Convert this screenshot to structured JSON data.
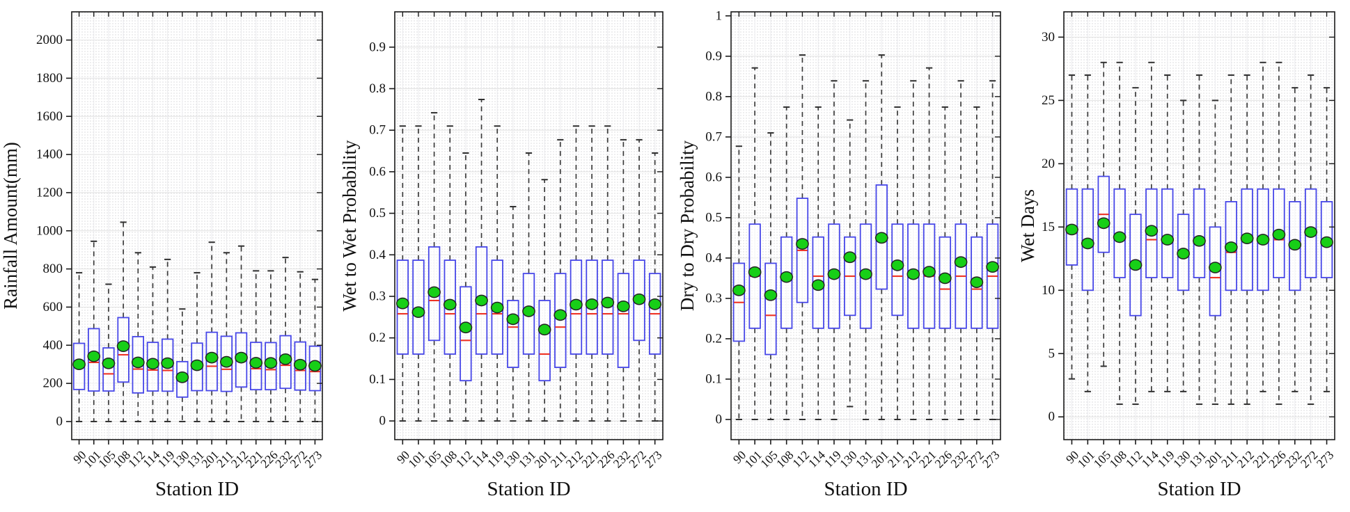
{
  "figure": {
    "type": "boxplot-grid",
    "panels": 4,
    "xlabel": "Station ID",
    "marker_legend": {
      "green_dot": "mean",
      "red_line": "median",
      "blue_box": "interquartile range",
      "dashed_line": "whisker"
    }
  },
  "colors": {
    "box_edge": "#4747e8",
    "box_fill": "#ffffff",
    "median": "#ee3224",
    "whisker": "#3c3c3c",
    "cap": "#2f2f2f",
    "mean_fill": "#17cf17",
    "mean_edge": "#222222",
    "axis": "#1a1a1a",
    "grid_major": "#e2e2e2",
    "grid_station": "#ebebee",
    "grid_minor_dot": "#c9c9ce",
    "text": "#111111"
  },
  "chart_data": [
    {
      "type": "box",
      "title": "",
      "xlabel": "Station ID",
      "ylabel": "Rainfall Amount(mm)",
      "ylim": [
        -95,
        2148
      ],
      "yticks": [
        0,
        200,
        400,
        600,
        800,
        1000,
        1200,
        1400,
        1600,
        1800,
        2000
      ],
      "grid": "dotted-minor",
      "legend_position": "none",
      "categories": [
        "90",
        "101",
        "105",
        "108",
        "112",
        "114",
        "119",
        "130",
        "131",
        "201",
        "211",
        "212",
        "221",
        "226",
        "232",
        "272",
        "273"
      ],
      "whisker_low": [
        0,
        0,
        0,
        0,
        0,
        0,
        0,
        0,
        0,
        0,
        0,
        0,
        0,
        0,
        0,
        0,
        0
      ],
      "q1": [
        168,
        160,
        160,
        207,
        150,
        160,
        159,
        128,
        162,
        162,
        158,
        181,
        167,
        167,
        174,
        165,
        162
      ],
      "median": [
        290,
        310,
        250,
        350,
        275,
        270,
        268,
        228,
        285,
        290,
        274,
        318,
        277,
        272,
        295,
        268,
        262
      ],
      "q3": [
        410,
        487,
        386,
        545,
        445,
        415,
        432,
        314,
        411,
        468,
        447,
        465,
        415,
        414,
        450,
        417,
        395
      ],
      "whisker_high": [
        780,
        945,
        720,
        1045,
        885,
        810,
        850,
        590,
        780,
        940,
        885,
        920,
        790,
        790,
        860,
        785,
        745
      ],
      "mean": [
        300,
        342,
        305,
        395,
        310,
        303,
        306,
        232,
        295,
        335,
        313,
        335,
        308,
        307,
        327,
        298,
        292
      ]
    },
    {
      "type": "box",
      "title": "",
      "xlabel": "Station ID",
      "ylabel": "Wet to Wet Probability",
      "ylim": [
        -0.045,
        0.985
      ],
      "yticks": [
        0,
        0.1,
        0.2,
        0.3,
        0.4,
        0.5,
        0.6,
        0.7,
        0.8,
        0.9
      ],
      "grid": "dotted-minor",
      "legend_position": "none",
      "categories": [
        "90",
        "101",
        "105",
        "108",
        "112",
        "114",
        "119",
        "130",
        "131",
        "201",
        "211",
        "212",
        "221",
        "226",
        "232",
        "272",
        "273"
      ],
      "whisker_low": [
        0,
        0,
        0,
        0,
        0,
        0,
        0,
        0,
        0,
        0,
        0,
        0,
        0,
        0,
        0,
        0,
        0
      ],
      "q1": [
        0.161,
        0.161,
        0.194,
        0.161,
        0.097,
        0.161,
        0.161,
        0.129,
        0.161,
        0.097,
        0.129,
        0.161,
        0.161,
        0.161,
        0.129,
        0.194,
        0.161
      ],
      "median": [
        0.258,
        0.258,
        0.29,
        0.258,
        0.194,
        0.258,
        0.258,
        0.226,
        0.258,
        0.161,
        0.226,
        0.258,
        0.258,
        0.258,
        0.258,
        0.29,
        0.258
      ],
      "q3": [
        0.387,
        0.387,
        0.419,
        0.387,
        0.323,
        0.419,
        0.387,
        0.29,
        0.355,
        0.29,
        0.355,
        0.387,
        0.387,
        0.387,
        0.355,
        0.387,
        0.355
      ],
      "whisker_high": [
        0.71,
        0.71,
        0.742,
        0.71,
        0.645,
        0.774,
        0.71,
        0.516,
        0.645,
        0.581,
        0.677,
        0.71,
        0.71,
        0.71,
        0.677,
        0.677,
        0.645
      ],
      "mean": [
        0.283,
        0.262,
        0.31,
        0.28,
        0.225,
        0.29,
        0.273,
        0.245,
        0.264,
        0.22,
        0.255,
        0.28,
        0.281,
        0.285,
        0.276,
        0.293,
        0.281
      ]
    },
    {
      "type": "box",
      "title": "",
      "xlabel": "Station ID",
      "ylabel": "Dry to Dry Probability",
      "ylim": [
        -0.05,
        1.01
      ],
      "yticks": [
        0,
        0.1,
        0.2,
        0.3,
        0.4,
        0.5,
        0.6,
        0.7,
        0.8,
        0.9,
        1
      ],
      "grid": "dotted-minor",
      "legend_position": "none",
      "categories": [
        "90",
        "101",
        "105",
        "108",
        "112",
        "114",
        "119",
        "130",
        "131",
        "201",
        "211",
        "212",
        "221",
        "226",
        "232",
        "272",
        "273"
      ],
      "whisker_low": [
        0,
        0,
        0,
        0,
        0,
        0,
        0,
        0.032,
        0,
        0,
        0,
        0,
        0,
        0,
        0,
        0,
        0
      ],
      "q1": [
        0.194,
        0.226,
        0.161,
        0.226,
        0.29,
        0.226,
        0.226,
        0.258,
        0.226,
        0.323,
        0.258,
        0.226,
        0.226,
        0.226,
        0.226,
        0.226,
        0.226
      ],
      "median": [
        0.29,
        0.355,
        0.258,
        0.355,
        0.419,
        0.355,
        0.355,
        0.355,
        0.355,
        0.452,
        0.355,
        0.355,
        0.355,
        0.323,
        0.355,
        0.323,
        0.355
      ],
      "q3": [
        0.387,
        0.484,
        0.387,
        0.452,
        0.548,
        0.452,
        0.484,
        0.452,
        0.484,
        0.581,
        0.484,
        0.484,
        0.484,
        0.452,
        0.484,
        0.452,
        0.484
      ],
      "whisker_high": [
        0.677,
        0.871,
        0.71,
        0.774,
        0.903,
        0.774,
        0.839,
        0.742,
        0.839,
        0.903,
        0.774,
        0.839,
        0.871,
        0.774,
        0.839,
        0.774,
        0.839
      ],
      "mean": [
        0.32,
        0.365,
        0.308,
        0.353,
        0.435,
        0.333,
        0.36,
        0.402,
        0.36,
        0.45,
        0.382,
        0.36,
        0.366,
        0.35,
        0.39,
        0.34,
        0.378
      ]
    },
    {
      "type": "box",
      "title": "",
      "xlabel": "Station ID",
      "ylabel": "Wet Days",
      "ylim": [
        -1.8,
        32
      ],
      "yticks": [
        0,
        5,
        10,
        15,
        20,
        25,
        30
      ],
      "grid": "dotted-minor",
      "legend_position": "none",
      "categories": [
        "90",
        "101",
        "105",
        "108",
        "112",
        "114",
        "119",
        "130",
        "131",
        "201",
        "211",
        "212",
        "221",
        "226",
        "232",
        "272",
        "273"
      ],
      "whisker_low": [
        3,
        2,
        4,
        1,
        1,
        2,
        2,
        2,
        1,
        1,
        1,
        1,
        2,
        1,
        2,
        1,
        2
      ],
      "q1": [
        12,
        10,
        13,
        11,
        8,
        11,
        11,
        10,
        11,
        8,
        10,
        10,
        10,
        11,
        10,
        11,
        11
      ],
      "median": [
        14.5,
        13.5,
        16,
        14,
        12,
        14,
        14,
        13,
        14,
        11,
        13,
        14,
        14,
        14,
        13.5,
        14.5,
        14
      ],
      "q3": [
        18,
        18,
        19,
        18,
        16,
        18,
        18,
        16,
        18,
        15,
        17,
        18,
        18,
        18,
        17,
        18,
        17
      ],
      "whisker_high": [
        27,
        27,
        28,
        28,
        26,
        28,
        27,
        25,
        27,
        25,
        27,
        27,
        28,
        28,
        26,
        27,
        26
      ],
      "mean": [
        14.8,
        13.7,
        15.3,
        14.2,
        12.0,
        14.7,
        14.0,
        12.9,
        13.9,
        11.8,
        13.4,
        14.1,
        14.0,
        14.4,
        13.6,
        14.6,
        13.8
      ]
    }
  ]
}
